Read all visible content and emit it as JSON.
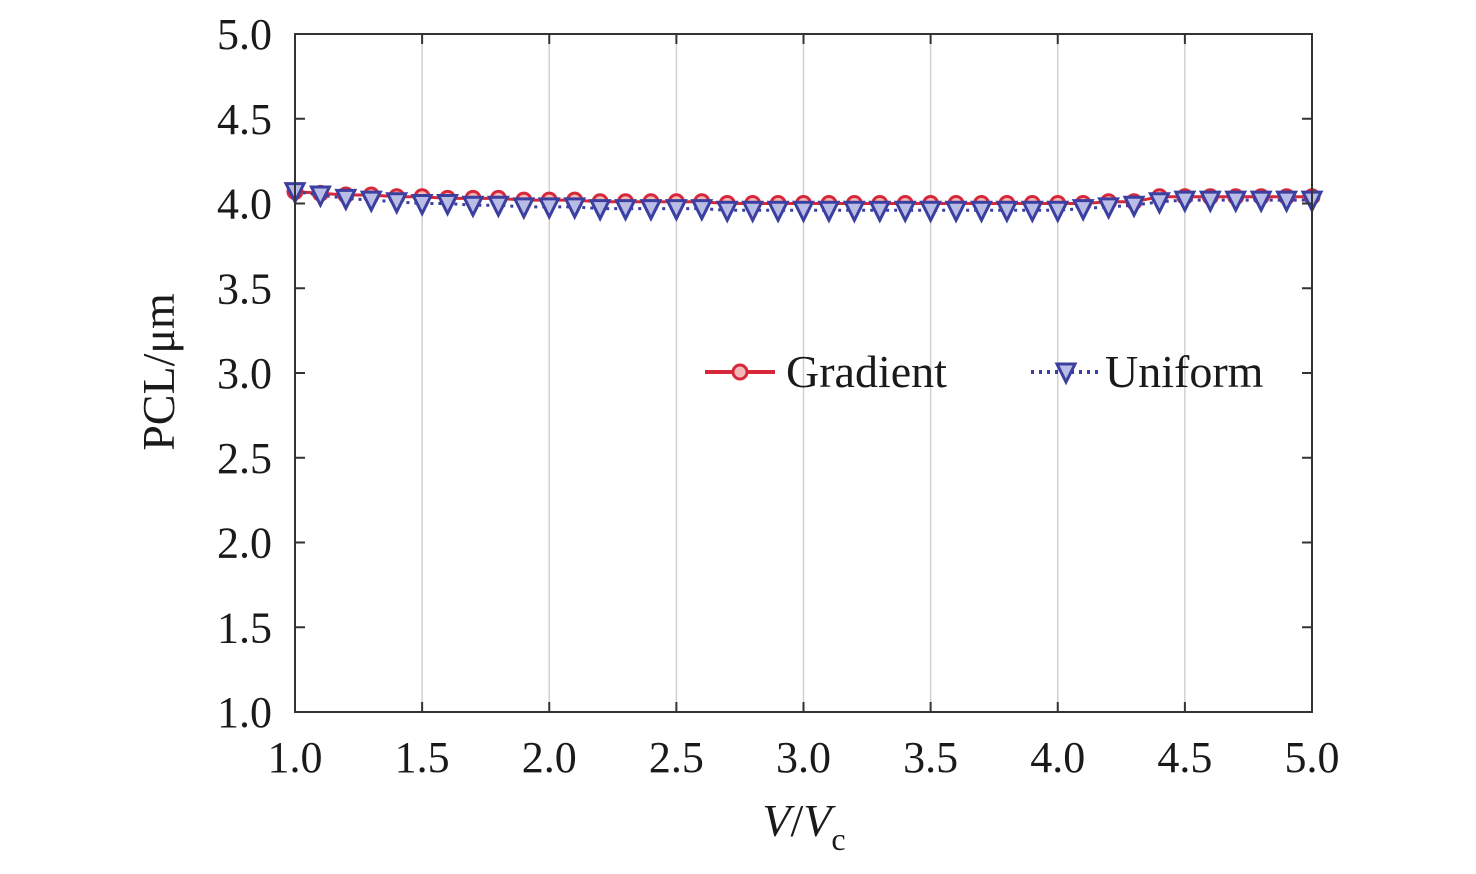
{
  "chart_data": {
    "type": "line",
    "title": "",
    "xlabel": "V/Vc",
    "xlabel_main": "V",
    "xlabel_sep": "/",
    "xlabel_var": "V",
    "xlabel_sub": "c",
    "ylabel": "PCL/μm",
    "xlim": [
      1.0,
      5.0
    ],
    "ylim": [
      1.0,
      5.0
    ],
    "xticks": [
      "1.0",
      "1.5",
      "2.0",
      "2.5",
      "3.0",
      "3.5",
      "4.0",
      "4.5",
      "5.0"
    ],
    "yticks": [
      "1.0",
      "1.5",
      "2.0",
      "2.5",
      "3.0",
      "3.5",
      "4.0",
      "4.5",
      "5.0"
    ],
    "grid": true,
    "legend_position": "center-right",
    "x": [
      1.0,
      1.1,
      1.2,
      1.3,
      1.4,
      1.5,
      1.6,
      1.7,
      1.8,
      1.9,
      2.0,
      2.1,
      2.2,
      2.3,
      2.4,
      2.5,
      2.6,
      2.7,
      2.8,
      2.9,
      3.0,
      3.1,
      3.2,
      3.3,
      3.4,
      3.5,
      3.6,
      3.7,
      3.8,
      3.9,
      4.0,
      4.1,
      4.2,
      4.3,
      4.4,
      4.5,
      4.6,
      4.7,
      4.8,
      4.9,
      5.0
    ],
    "series": [
      {
        "name": "Gradient",
        "color": "#d6283a",
        "marker": "circle",
        "line_style": "solid",
        "values": [
          4.07,
          4.06,
          4.05,
          4.05,
          4.04,
          4.04,
          4.03,
          4.03,
          4.03,
          4.02,
          4.02,
          4.02,
          4.01,
          4.01,
          4.01,
          4.01,
          4.01,
          4.0,
          4.0,
          4.0,
          4.0,
          4.0,
          4.0,
          4.0,
          4.0,
          4.0,
          4.0,
          4.0,
          4.0,
          4.0,
          4.0,
          4.0,
          4.01,
          4.01,
          4.04,
          4.04,
          4.04,
          4.04,
          4.04,
          4.04,
          4.04
        ]
      },
      {
        "name": "Uniform",
        "color": "#3b3fa0",
        "marker": "triangle-down",
        "line_style": "dotted",
        "values": [
          4.07,
          4.05,
          4.03,
          4.02,
          4.01,
          4.0,
          4.0,
          3.99,
          3.99,
          3.98,
          3.98,
          3.98,
          3.97,
          3.97,
          3.97,
          3.97,
          3.97,
          3.96,
          3.96,
          3.96,
          3.96,
          3.96,
          3.96,
          3.96,
          3.96,
          3.96,
          3.96,
          3.96,
          3.96,
          3.96,
          3.96,
          3.97,
          3.98,
          3.99,
          4.01,
          4.02,
          4.02,
          4.02,
          4.02,
          4.02,
          4.02
        ]
      }
    ]
  },
  "colors": {
    "axis": "#333333",
    "grid": "#d0d0d0"
  }
}
